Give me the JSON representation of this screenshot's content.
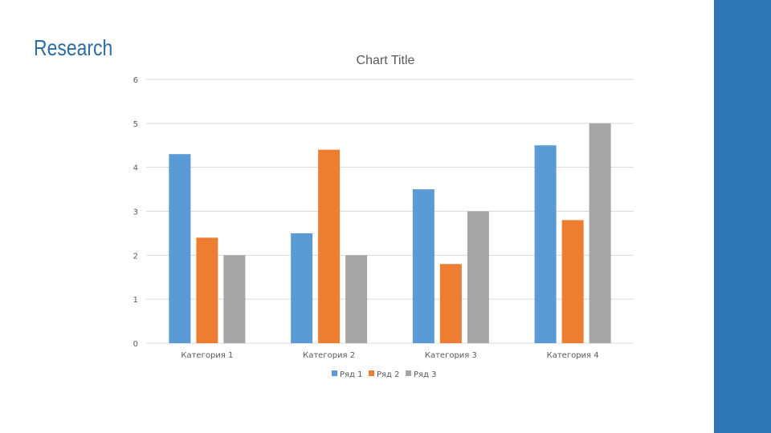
{
  "slide": {
    "title": "Research",
    "title_color": "#2e6da4",
    "accent_bar_color": "#2e75b6"
  },
  "chart_data": {
    "type": "bar",
    "title": "Chart Title",
    "categories": [
      "Категория 1",
      "Категория 2",
      "Категория 3",
      "Категория 4"
    ],
    "series": [
      {
        "name": "Ряд 1",
        "values": [
          4.3,
          2.5,
          3.5,
          4.5
        ],
        "color": "#5b9bd5"
      },
      {
        "name": "Ряд 2",
        "values": [
          2.4,
          4.4,
          1.8,
          2.8
        ],
        "color": "#ed7d31"
      },
      {
        "name": "Ряд 3",
        "values": [
          2,
          2,
          3,
          5
        ],
        "color": "#a5a5a5"
      }
    ],
    "ylim": [
      0,
      6
    ],
    "yticks": [
      "0",
      "1",
      "2",
      "3",
      "4",
      "5",
      "6"
    ],
    "grid": true,
    "legend": "bottom"
  }
}
